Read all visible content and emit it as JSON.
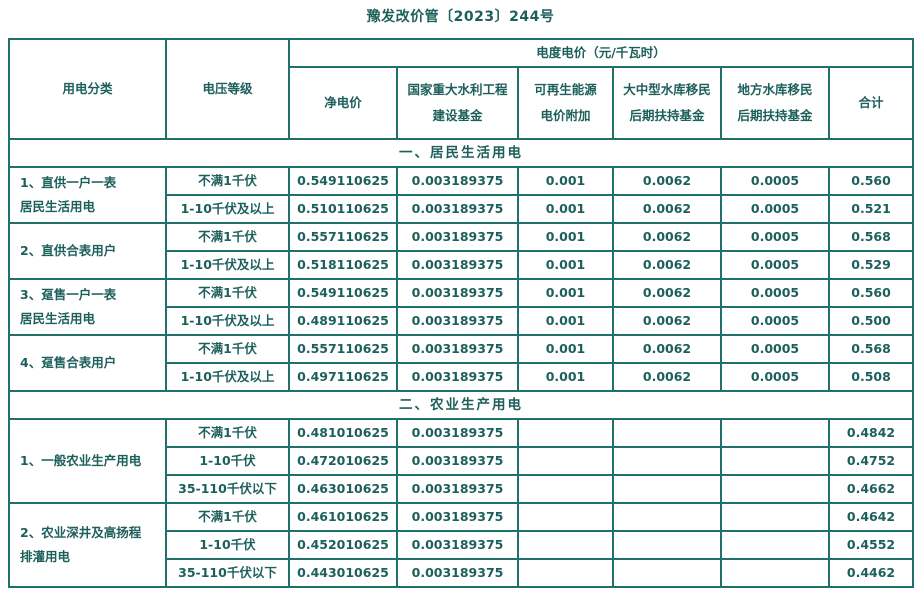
{
  "document": {
    "title": "豫发改价管〔2023〕244号",
    "accent_color": "#1f6f6a"
  },
  "table": {
    "headers": {
      "category": "用电分类",
      "voltage": "电压等级",
      "price_group": "电度电价（元/千瓦时）",
      "columns": [
        "净电价",
        "国家重大水利工程\n建设基金",
        "可再生能源\n电价附加",
        "大中型水库移民\n后期扶持基金",
        "地方水库移民\n后期扶持基金",
        "合计"
      ]
    },
    "sections": [
      {
        "title": "一、居民生活用电",
        "groups": [
          {
            "category": "1、直供一户一表\n居民生活用电",
            "rows": [
              {
                "voltage": "不满1千伏",
                "values": [
                  "0.549110625",
                  "0.003189375",
                  "0.001",
                  "0.0062",
                  "0.0005",
                  "0.560"
                ]
              },
              {
                "voltage": "1-10千伏及以上",
                "values": [
                  "0.510110625",
                  "0.003189375",
                  "0.001",
                  "0.0062",
                  "0.0005",
                  "0.521"
                ]
              }
            ]
          },
          {
            "category": "2、直供合表用户",
            "rows": [
              {
                "voltage": "不满1千伏",
                "values": [
                  "0.557110625",
                  "0.003189375",
                  "0.001",
                  "0.0062",
                  "0.0005",
                  "0.568"
                ]
              },
              {
                "voltage": "1-10千伏及以上",
                "values": [
                  "0.518110625",
                  "0.003189375",
                  "0.001",
                  "0.0062",
                  "0.0005",
                  "0.529"
                ]
              }
            ]
          },
          {
            "category": "3、趸售一户一表\n居民生活用电",
            "rows": [
              {
                "voltage": "不满1千伏",
                "values": [
                  "0.549110625",
                  "0.003189375",
                  "0.001",
                  "0.0062",
                  "0.0005",
                  "0.560"
                ]
              },
              {
                "voltage": "1-10千伏及以上",
                "values": [
                  "0.489110625",
                  "0.003189375",
                  "0.001",
                  "0.0062",
                  "0.0005",
                  "0.500"
                ]
              }
            ]
          },
          {
            "category": "4、趸售合表用户",
            "rows": [
              {
                "voltage": "不满1千伏",
                "values": [
                  "0.557110625",
                  "0.003189375",
                  "0.001",
                  "0.0062",
                  "0.0005",
                  "0.568"
                ]
              },
              {
                "voltage": "1-10千伏及以上",
                "values": [
                  "0.497110625",
                  "0.003189375",
                  "0.001",
                  "0.0062",
                  "0.0005",
                  "0.508"
                ]
              }
            ]
          }
        ]
      },
      {
        "title": "二、农业生产用电",
        "groups": [
          {
            "category": "1、一般农业生产用电",
            "rows": [
              {
                "voltage": "不满1千伏",
                "values": [
                  "0.481010625",
                  "0.003189375",
                  "",
                  "",
                  "",
                  "0.4842"
                ]
              },
              {
                "voltage": "1-10千伏",
                "values": [
                  "0.472010625",
                  "0.003189375",
                  "",
                  "",
                  "",
                  "0.4752"
                ]
              },
              {
                "voltage": "35-110千伏以下",
                "values": [
                  "0.463010625",
                  "0.003189375",
                  "",
                  "",
                  "",
                  "0.4662"
                ]
              }
            ]
          },
          {
            "category": "2、农业深井及高扬程\n排灌用电",
            "rows": [
              {
                "voltage": "不满1千伏",
                "values": [
                  "0.461010625",
                  "0.003189375",
                  "",
                  "",
                  "",
                  "0.4642"
                ]
              },
              {
                "voltage": "1-10千伏",
                "values": [
                  "0.452010625",
                  "0.003189375",
                  "",
                  "",
                  "",
                  "0.4552"
                ]
              },
              {
                "voltage": "35-110千伏以下",
                "values": [
                  "0.443010625",
                  "0.003189375",
                  "",
                  "",
                  "",
                  "0.4462"
                ]
              }
            ]
          }
        ]
      }
    ]
  }
}
